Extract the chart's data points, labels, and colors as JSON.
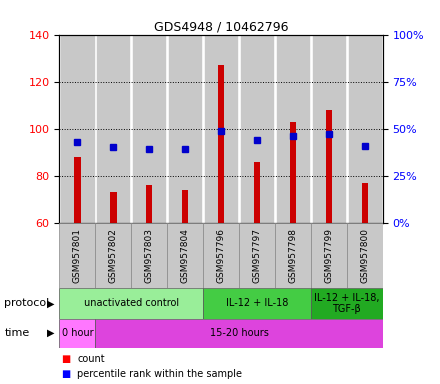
{
  "title": "GDS4948 / 10462796",
  "samples": [
    "GSM957801",
    "GSM957802",
    "GSM957803",
    "GSM957804",
    "GSM957796",
    "GSM957797",
    "GSM957798",
    "GSM957799",
    "GSM957800"
  ],
  "count_values": [
    88,
    73,
    76,
    74,
    127,
    86,
    103,
    108,
    77
  ],
  "percentile_values": [
    43,
    40,
    39,
    39,
    49,
    44,
    46,
    47,
    41
  ],
  "ylim_left": [
    60,
    140
  ],
  "ylim_right": [
    0,
    100
  ],
  "yticks_left": [
    60,
    80,
    100,
    120,
    140
  ],
  "yticks_right": [
    0,
    25,
    50,
    75,
    100
  ],
  "bar_color": "#cc0000",
  "dot_color": "#0000cc",
  "chart_bg": "#ffffff",
  "xlabels_bg": "#c8c8c8",
  "protocol_groups": [
    {
      "label": "unactivated control",
      "start": 0,
      "end": 4,
      "color": "#99ee99"
    },
    {
      "label": "IL-12 + IL-18",
      "start": 4,
      "end": 7,
      "color": "#44cc44"
    },
    {
      "label": "IL-12 + IL-18,\nTGF-β",
      "start": 7,
      "end": 9,
      "color": "#22aa22"
    }
  ],
  "time_groups": [
    {
      "label": "0 hour",
      "start": 0,
      "end": 1,
      "color": "#ff77ff"
    },
    {
      "label": "15-20 hours",
      "start": 1,
      "end": 9,
      "color": "#dd44dd"
    }
  ],
  "protocol_label": "protocol",
  "time_label": "time",
  "legend_count": "count",
  "legend_pct": "percentile rank within the sample",
  "fig_width": 4.4,
  "fig_height": 3.84,
  "dpi": 100
}
